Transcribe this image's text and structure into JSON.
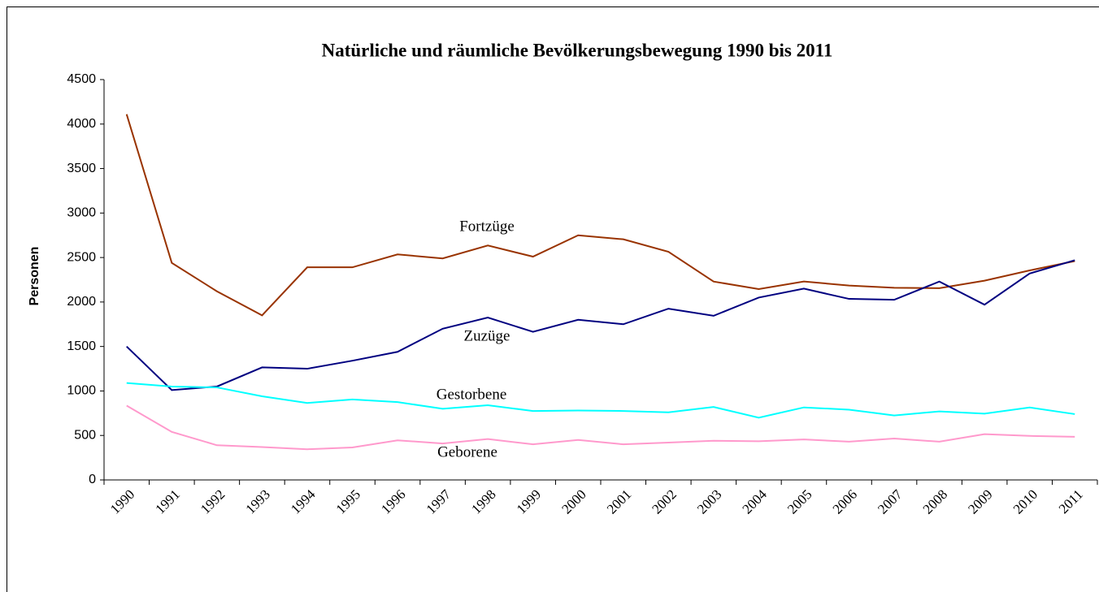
{
  "chart_data": {
    "type": "line",
    "title": "Natürliche und räumliche Bevölkerungsbewegung 1990 bis 2011",
    "y_label": "Personen",
    "categories": [
      "1990",
      "1991",
      "1992",
      "1993",
      "1994",
      "1995",
      "1996",
      "1997",
      "1998",
      "1999",
      "2000",
      "2001",
      "2002",
      "2003",
      "2004",
      "2005",
      "2006",
      "2007",
      "2008",
      "2009",
      "2010",
      "2011"
    ],
    "series": [
      {
        "name": "Fortzüge",
        "color": "#993300",
        "values": [
          4110,
          2440,
          2120,
          1850,
          2390,
          2390,
          2535,
          2490,
          2635,
          2510,
          2750,
          2705,
          2565,
          2230,
          2145,
          2230,
          2185,
          2160,
          2155,
          2240,
          2355,
          2460
        ]
      },
      {
        "name": "Zuzüge",
        "color": "#000080",
        "values": [
          1500,
          1010,
          1050,
          1265,
          1250,
          1340,
          1440,
          1700,
          1825,
          1665,
          1800,
          1750,
          1925,
          1845,
          2050,
          2150,
          2035,
          2025,
          2230,
          1970,
          2320,
          2470
        ]
      },
      {
        "name": "Gestorbene",
        "color": "#00ffff",
        "values": [
          1090,
          1050,
          1040,
          940,
          865,
          905,
          875,
          800,
          840,
          775,
          780,
          775,
          760,
          820,
          700,
          815,
          790,
          725,
          770,
          745,
          815,
          740
        ]
      },
      {
        "name": "Geborene",
        "color": "#ff99cc",
        "values": [
          835,
          540,
          390,
          370,
          345,
          365,
          445,
          410,
          460,
          400,
          450,
          400,
          420,
          440,
          435,
          455,
          430,
          465,
          430,
          515,
          495,
          485
        ]
      }
    ],
    "ylim": [
      0,
      4500
    ],
    "yticks": [
      0,
      500,
      1000,
      1500,
      2000,
      2500,
      3000,
      3500,
      4000,
      4500
    ]
  }
}
